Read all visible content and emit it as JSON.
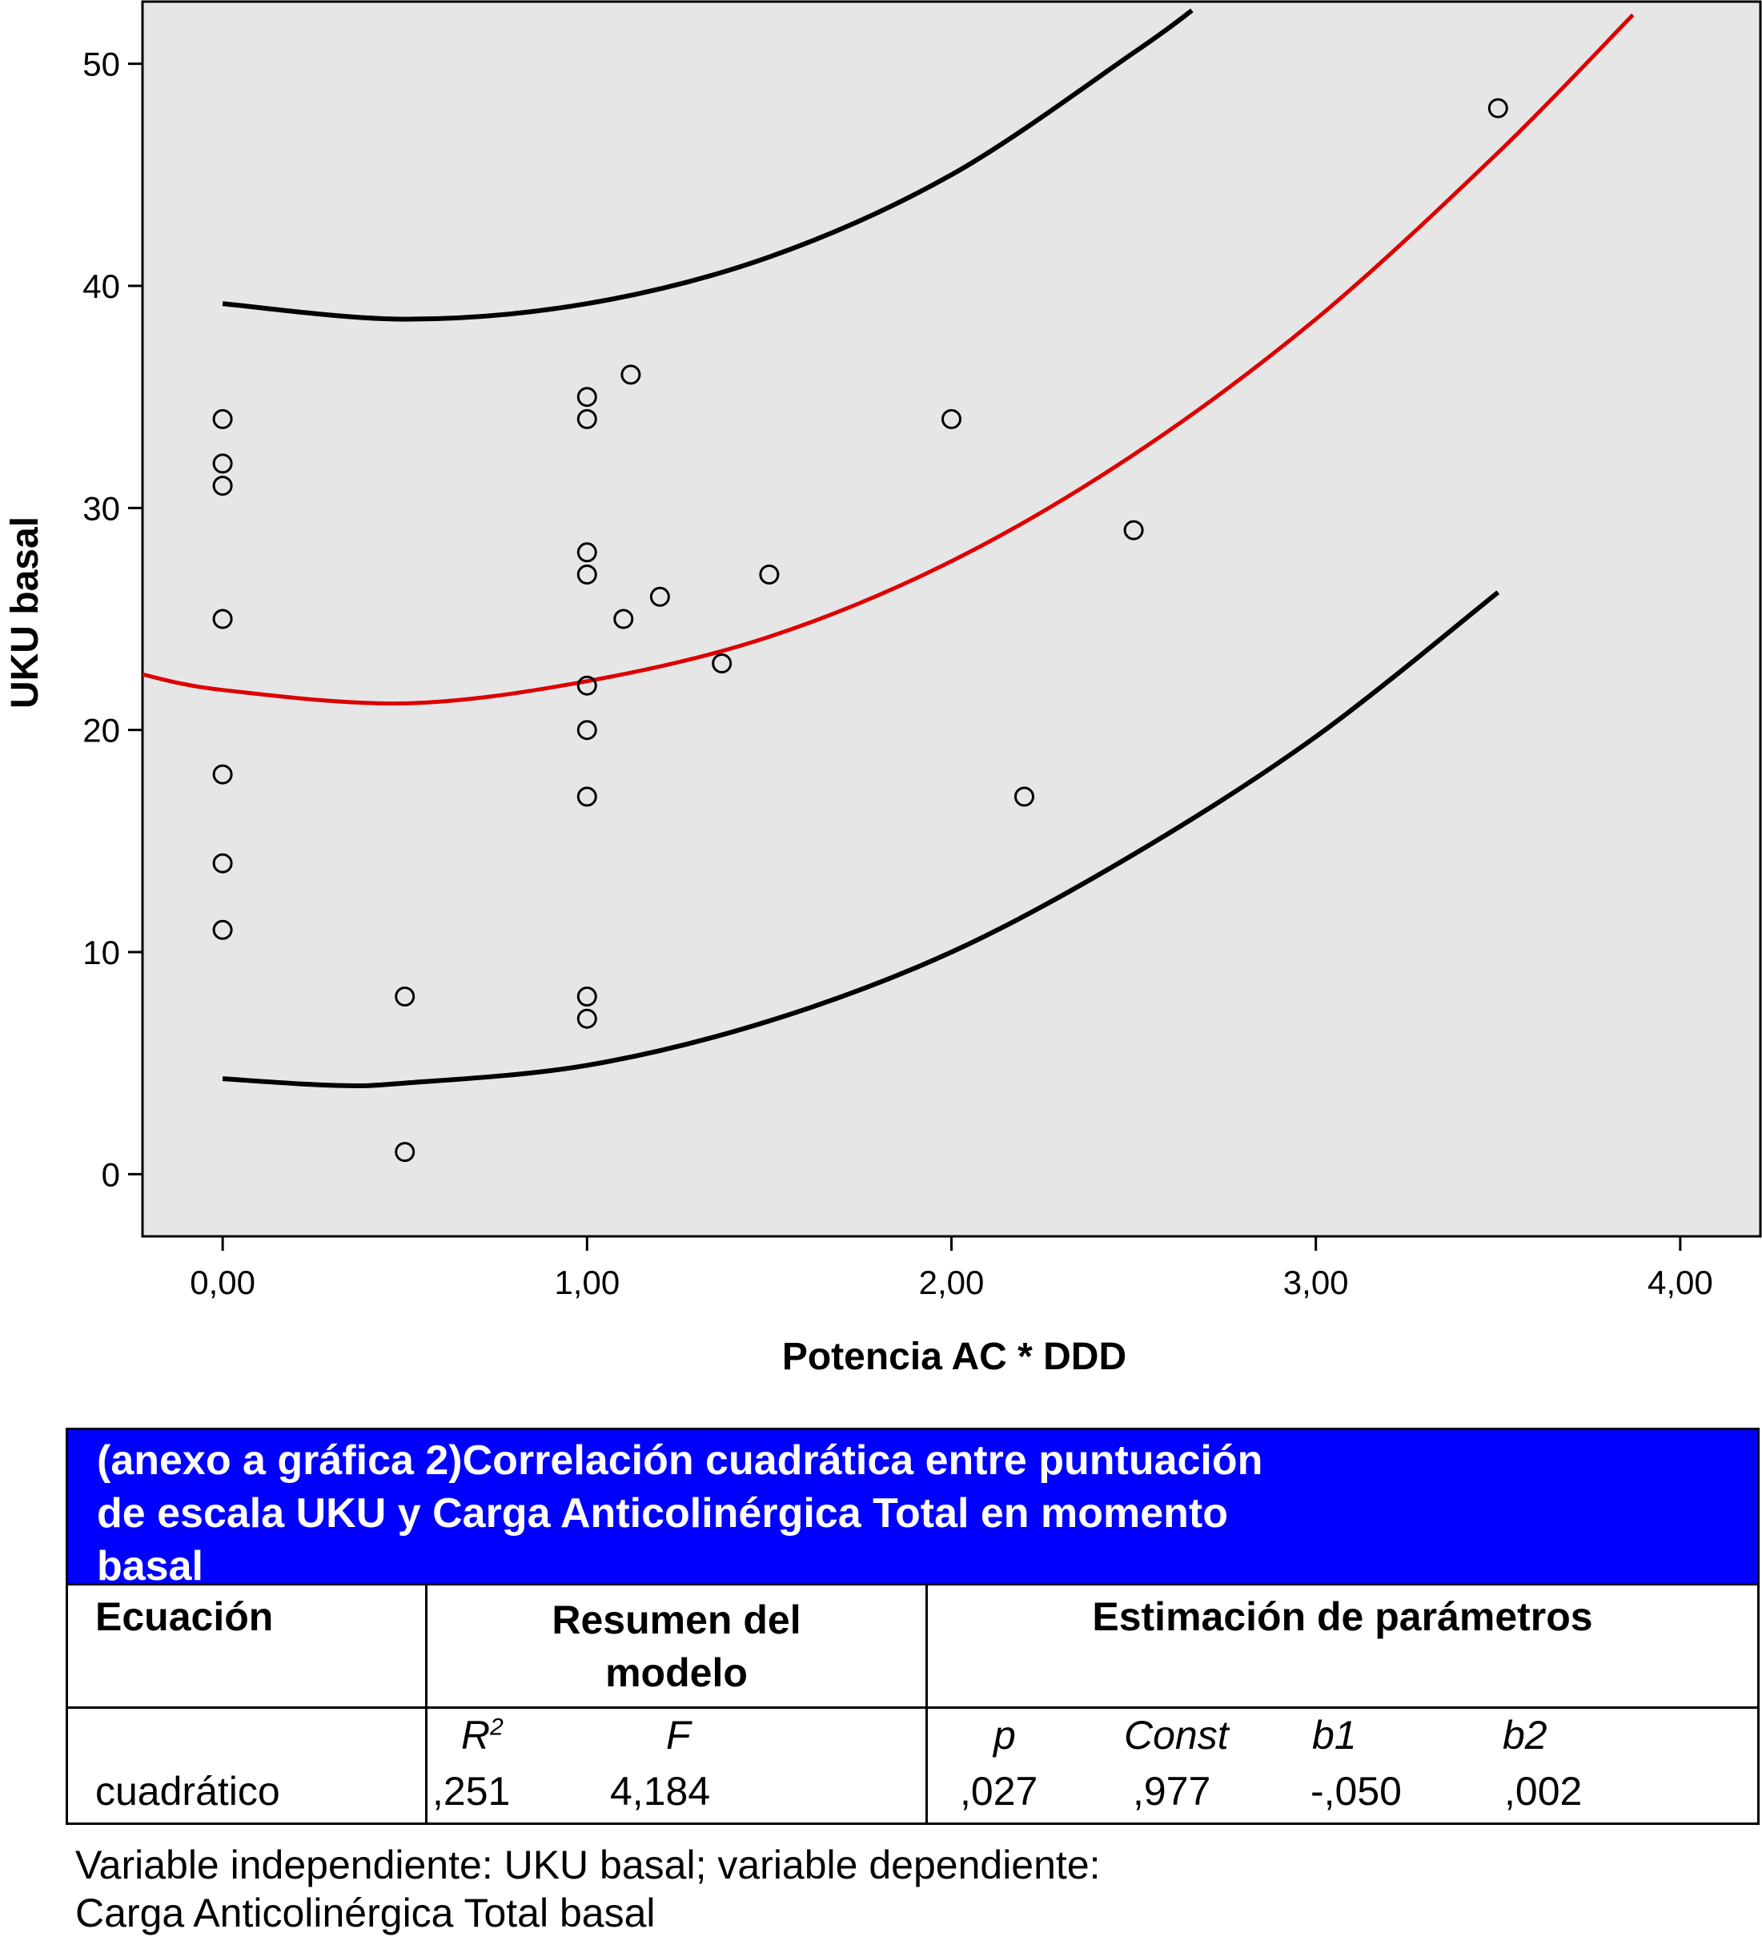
{
  "chart_data": {
    "type": "scatter",
    "xlabel": "Potencia AC * DDD",
    "ylabel": "UKU basal",
    "xlim": [
      -0.22,
      4.22
    ],
    "ylim": [
      -2.8,
      52.8
    ],
    "x_ticks": [
      0,
      1,
      2,
      3,
      4
    ],
    "x_tick_labels": [
      "0,00",
      "1,00",
      "2,00",
      "3,00",
      "4,00"
    ],
    "y_ticks": [
      0,
      10,
      20,
      30,
      40,
      50
    ],
    "y_tick_labels": [
      "0",
      "10",
      "20",
      "30",
      "40",
      "50"
    ],
    "grid": false,
    "colors": {
      "plot_background": "#e6e6e6",
      "fit_line": "#dd0000",
      "interval_lines": "#000000"
    },
    "points": [
      {
        "x": 0,
        "y": 34
      },
      {
        "x": 0,
        "y": 32
      },
      {
        "x": 0,
        "y": 31
      },
      {
        "x": 0,
        "y": 25
      },
      {
        "x": 0,
        "y": 18
      },
      {
        "x": 0,
        "y": 14
      },
      {
        "x": 0,
        "y": 11
      },
      {
        "x": 0.5,
        "y": 8
      },
      {
        "x": 0.5,
        "y": 1
      },
      {
        "x": 1,
        "y": 35
      },
      {
        "x": 1,
        "y": 34
      },
      {
        "x": 1,
        "y": 28
      },
      {
        "x": 1,
        "y": 27
      },
      {
        "x": 1,
        "y": 22
      },
      {
        "x": 1,
        "y": 20
      },
      {
        "x": 1,
        "y": 17
      },
      {
        "x": 1,
        "y": 8
      },
      {
        "x": 1,
        "y": 7
      },
      {
        "x": 1.1,
        "y": 25
      },
      {
        "x": 1.12,
        "y": 36
      },
      {
        "x": 1.2,
        "y": 26
      },
      {
        "x": 1.37,
        "y": 23
      },
      {
        "x": 1.5,
        "y": 27
      },
      {
        "x": 2,
        "y": 34
      },
      {
        "x": 2.2,
        "y": 17
      },
      {
        "x": 2.5,
        "y": 29
      },
      {
        "x": 3.5,
        "y": 48
      }
    ],
    "fit_curve": {
      "x": [
        -0.22,
        0,
        0.5,
        1,
        1.5,
        2,
        2.5,
        3,
        3.5,
        3.87
      ],
      "y": [
        22.5,
        21.8,
        21.2,
        22.2,
        24.2,
        27.6,
        32.4,
        38.5,
        46.0,
        52.2
      ]
    },
    "upper_interval": {
      "x": [
        0,
        0.5,
        1,
        1.5,
        2,
        2.5,
        2.66
      ],
      "y": [
        39.2,
        38.5,
        39.2,
        41.3,
        45.0,
        50.5,
        52.4
      ]
    },
    "lower_interval": {
      "x": [
        0,
        0.3,
        0.5,
        1,
        1.5,
        2,
        2.5,
        3,
        3.5
      ],
      "y": [
        4.3,
        4.0,
        4.1,
        4.9,
        6.9,
        10.0,
        14.4,
        19.7,
        26.2
      ]
    }
  },
  "table": {
    "title": "(anexo a gráfica 2)Correlación cuadrática entre puntuación de escala UKU y Carga Anticolinérgica Total en momento basal",
    "title_lines": [
      "(anexo a gráfica 2)Correlación cuadrática entre puntuación",
      "de escala UKU y Carga Anticolinérgica Total en momento",
      "basal"
    ],
    "header_equation": "Ecuación",
    "header_model_line1": "Resumen del",
    "header_model_line2": "modelo",
    "header_params": "Estimación de parámetros",
    "sub_r2_base": "R",
    "sub_r2_sup": "2",
    "sub_f": "F",
    "sub_p": "p",
    "sub_const": "Const",
    "sub_b1": "b1",
    "sub_b2": "b2",
    "row_equation": "cuadrático",
    "row_r2": ",251",
    "row_f": "4,184",
    "row_p": ",027",
    "row_const": ",977",
    "row_b1": "-,050",
    "row_b2": ",002",
    "colors": {
      "title_background": "#0000ff",
      "title_text": "#ffffff"
    }
  },
  "footnote": {
    "line1": "Variable independiente: UKU basal; variable dependiente:",
    "line2": "Carga Anticolinérgica Total basal"
  }
}
